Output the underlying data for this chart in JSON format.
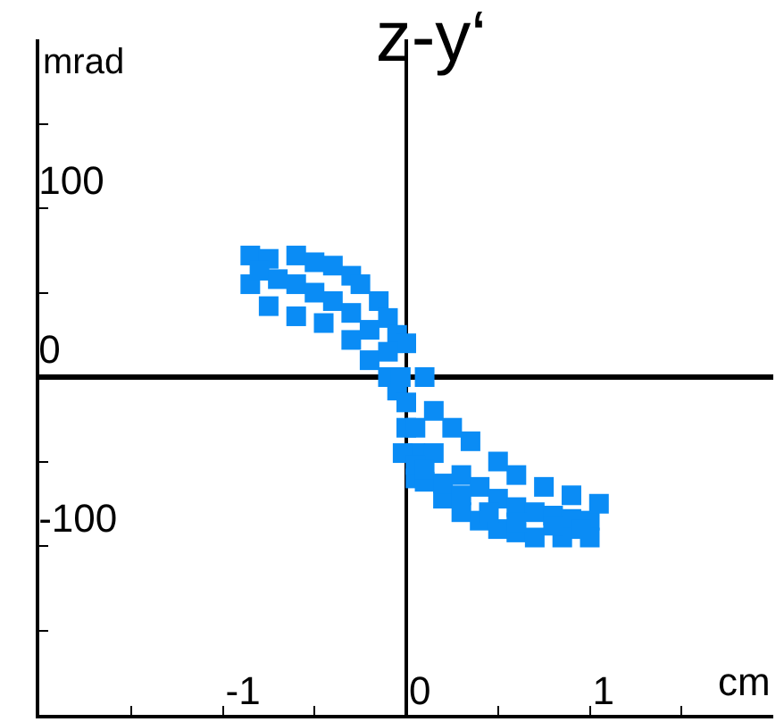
{
  "chart_data": {
    "type": "scatter",
    "title": "z-y‘",
    "xlabel": "cm",
    "ylabel": "mrad",
    "x": [
      -0.85,
      -0.75,
      -0.6,
      -0.5,
      -0.4,
      -0.3,
      -0.25,
      -0.15,
      -0.1,
      -0.05,
      0.0,
      -0.85,
      -0.75,
      -0.6,
      -0.45,
      -0.3,
      -0.2,
      -0.1,
      -0.05,
      0.0,
      0.05,
      -0.8,
      -0.7,
      -0.6,
      -0.5,
      -0.4,
      -0.3,
      -0.2,
      -0.1,
      -0.03,
      0.0,
      0.05,
      0.15,
      0.3,
      0.4,
      0.5,
      0.6,
      0.7,
      0.8,
      0.9,
      1.0,
      0.1,
      0.15,
      0.25,
      0.35,
      0.5,
      0.6,
      0.75,
      0.9,
      1.05,
      -0.02,
      0.05,
      0.1,
      0.2,
      0.3,
      0.4,
      0.5,
      0.6,
      0.7,
      0.85,
      1.0,
      0.05,
      0.1,
      0.2,
      0.3,
      0.45,
      0.6,
      0.8,
      0.95
    ],
    "values": [
      72,
      70,
      72,
      68,
      66,
      60,
      55,
      45,
      35,
      25,
      20,
      55,
      42,
      36,
      32,
      22,
      10,
      0,
      -8,
      -30,
      -45,
      63,
      58,
      55,
      50,
      45,
      38,
      28,
      15,
      0,
      -15,
      -30,
      -45,
      -58,
      -65,
      -72,
      -77,
      -80,
      -82,
      -84,
      -85,
      0,
      -20,
      -30,
      -38,
      -50,
      -58,
      -65,
      -70,
      -75,
      -45,
      -60,
      -62,
      -72,
      -80,
      -85,
      -90,
      -92,
      -95,
      -95,
      -95,
      -52,
      -55,
      -63,
      -70,
      -80,
      -86,
      -88,
      -90
    ],
    "color": "#0a8cf5",
    "marker": "square",
    "xlim": [
      -2,
      2
    ],
    "ylim": [
      -200,
      200
    ],
    "xticks": [
      {
        "value": -1.5,
        "label": null
      },
      -1,
      {
        "value": -0.5,
        "label": null
      },
      0,
      {
        "value": 0.5,
        "label": null
      },
      1,
      {
        "value": 1.5,
        "label": null
      }
    ],
    "yticks": [
      {
        "value": -150,
        "label": null
      },
      -100,
      {
        "value": -50,
        "label": null
      },
      0,
      {
        "value": 50,
        "label": null
      },
      100,
      {
        "value": 150,
        "label": null
      }
    ],
    "legend": false
  }
}
